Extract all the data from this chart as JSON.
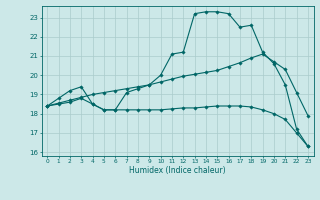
{
  "xlabel": "Humidex (Indice chaleur)",
  "ylabel": "",
  "xlim": [
    -0.5,
    23.5
  ],
  "ylim": [
    15.8,
    23.6
  ],
  "xticks": [
    0,
    1,
    2,
    3,
    4,
    5,
    6,
    7,
    8,
    9,
    10,
    11,
    12,
    13,
    14,
    15,
    16,
    17,
    18,
    19,
    20,
    21,
    22,
    23
  ],
  "yticks": [
    16,
    17,
    18,
    19,
    20,
    21,
    22,
    23
  ],
  "bg_color": "#cce8e8",
  "line_color": "#006666",
  "grid_color": "#aacccc",
  "series": [
    {
      "x": [
        0,
        1,
        2,
        3,
        4,
        5,
        6,
        7,
        8,
        9,
        10,
        11,
        12,
        13,
        14,
        15,
        16,
        17,
        18,
        19,
        20,
        21,
        22,
        23
      ],
      "y": [
        18.4,
        18.8,
        19.2,
        19.4,
        18.5,
        18.2,
        18.2,
        19.1,
        19.3,
        19.5,
        20.0,
        21.1,
        21.2,
        23.2,
        23.3,
        23.3,
        23.2,
        22.5,
        22.6,
        21.2,
        20.6,
        19.5,
        17.2,
        16.3
      ]
    },
    {
      "x": [
        0,
        1,
        2,
        3,
        4,
        5,
        6,
        7,
        8,
        9,
        10,
        11,
        12,
        13,
        14,
        15,
        16,
        17,
        18,
        19,
        20,
        21,
        22,
        23
      ],
      "y": [
        18.4,
        18.55,
        18.7,
        18.85,
        19.0,
        19.1,
        19.2,
        19.3,
        19.4,
        19.5,
        19.65,
        19.8,
        19.95,
        20.05,
        20.15,
        20.25,
        20.45,
        20.65,
        20.9,
        21.1,
        20.7,
        20.3,
        19.1,
        17.9
      ]
    },
    {
      "x": [
        0,
        1,
        2,
        3,
        4,
        5,
        6,
        7,
        8,
        9,
        10,
        11,
        12,
        13,
        14,
        15,
        16,
        17,
        18,
        19,
        20,
        21,
        22,
        23
      ],
      "y": [
        18.4,
        18.5,
        18.6,
        18.8,
        18.5,
        18.2,
        18.2,
        18.2,
        18.2,
        18.2,
        18.2,
        18.25,
        18.3,
        18.3,
        18.35,
        18.4,
        18.4,
        18.4,
        18.35,
        18.2,
        18.0,
        17.7,
        17.0,
        16.3
      ]
    }
  ]
}
